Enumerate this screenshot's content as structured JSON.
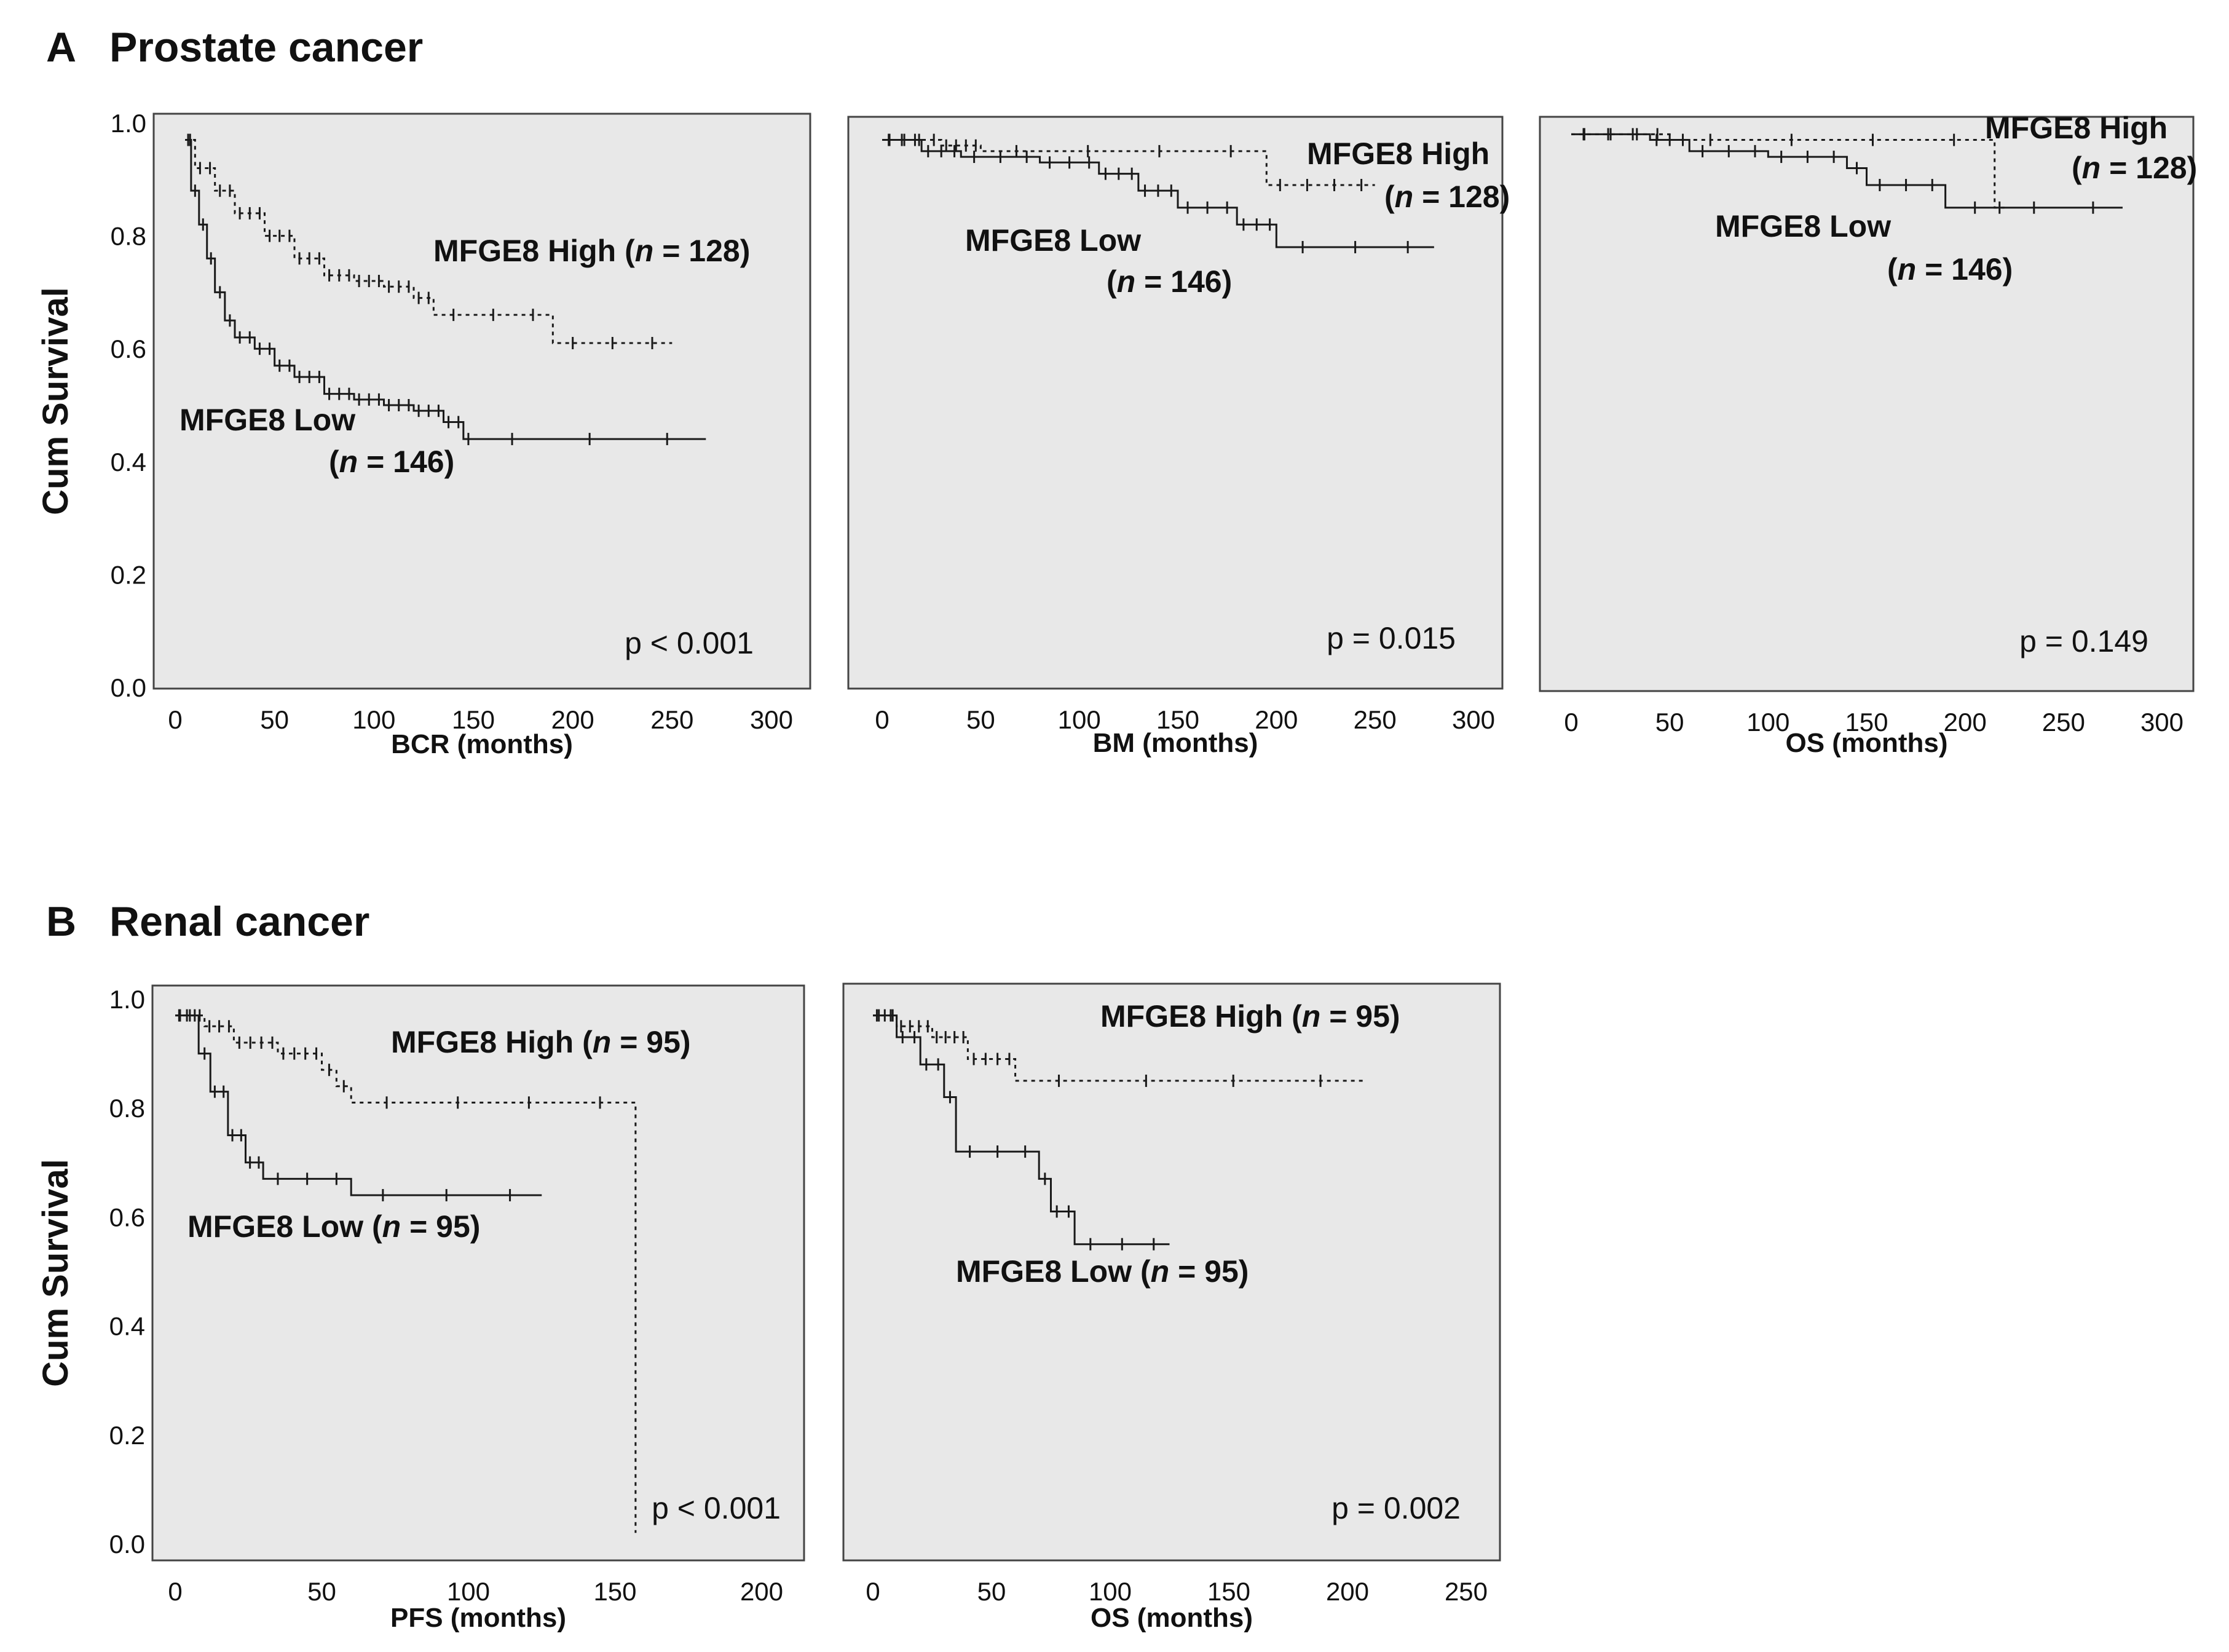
{
  "figure": {
    "section_a": {
      "letter": "A",
      "title": "Prostate cancer"
    },
    "section_b": {
      "letter": "B",
      "title": "Renal cancer"
    }
  },
  "style": {
    "panel_background": "#e8e8e8",
    "line_color": "#1a1a1a"
  },
  "chart_data": [
    {
      "type": "line",
      "xlabel": "BCR (months)",
      "ylabel": "Cum Survival",
      "xlim": [
        0,
        300
      ],
      "ylim": [
        0,
        1.0
      ],
      "xticks": [
        0,
        50,
        100,
        150,
        200,
        250,
        300
      ],
      "yticks": [
        0.0,
        0.2,
        0.4,
        0.6,
        0.8,
        1.0
      ],
      "pvalue": "p < 0.001",
      "label_high": "MFGE8 High (n = 128)",
      "label_low_1": "MFGE8 Low",
      "label_low_2": "(n = 146)",
      "series": [
        {
          "name": "MFGE8 High (n = 128)",
          "dashed": true,
          "x": [
            5,
            10,
            20,
            30,
            45,
            60,
            75,
            90,
            105,
            120,
            130,
            190,
            250
          ],
          "y": [
            0.97,
            0.92,
            0.88,
            0.84,
            0.8,
            0.76,
            0.73,
            0.72,
            0.71,
            0.69,
            0.66,
            0.61,
            0.61
          ]
        },
        {
          "name": "MFGE8 Low (n = 146)",
          "dashed": false,
          "x": [
            5,
            8,
            12,
            16,
            20,
            25,
            30,
            40,
            50,
            60,
            75,
            90,
            105,
            120,
            135,
            145,
            150,
            267
          ],
          "y": [
            0.97,
            0.88,
            0.82,
            0.76,
            0.7,
            0.65,
            0.62,
            0.6,
            0.57,
            0.55,
            0.52,
            0.51,
            0.5,
            0.49,
            0.47,
            0.44,
            0.44,
            0.44
          ]
        }
      ]
    },
    {
      "type": "line",
      "xlabel": "BM (months)",
      "xlim": [
        0,
        300
      ],
      "ylim": [
        0,
        1.0
      ],
      "xticks": [
        0,
        50,
        100,
        150,
        200,
        250,
        300
      ],
      "pvalue": "p = 0.015",
      "label_high_1": "MFGE8 High",
      "label_high_2": "(n = 128)",
      "label_low_1": "MFGE8 Low",
      "label_low_2": "(n = 146)",
      "series": [
        {
          "name": "MFGE8 High (n = 128)",
          "dashed": true,
          "x": [
            0,
            30,
            50,
            195,
            250
          ],
          "y": [
            0.97,
            0.96,
            0.95,
            0.89,
            0.89
          ]
        },
        {
          "name": "MFGE8 Low (n = 146)",
          "dashed": false,
          "x": [
            0,
            20,
            40,
            80,
            110,
            130,
            150,
            180,
            200,
            280
          ],
          "y": [
            0.97,
            0.95,
            0.94,
            0.93,
            0.91,
            0.88,
            0.85,
            0.82,
            0.78,
            0.78
          ]
        }
      ]
    },
    {
      "type": "line",
      "xlabel": "OS (months)",
      "xlim": [
        0,
        300
      ],
      "ylim": [
        0,
        1.0
      ],
      "xticks": [
        0,
        50,
        100,
        150,
        200,
        250,
        300
      ],
      "pvalue": "p = 0.149",
      "label_high_1": "MFGE8 High",
      "label_high_2": "(n = 128)",
      "label_low_1": "MFGE8 Low",
      "label_low_2": "(n = 146)",
      "series": [
        {
          "name": "MFGE8 High (n = 128)",
          "dashed": true,
          "x": [
            0,
            50,
            215,
            220
          ],
          "y": [
            0.98,
            0.97,
            0.85,
            0.85
          ]
        },
        {
          "name": "MFGE8 Low (n = 146)",
          "dashed": false,
          "x": [
            0,
            40,
            60,
            100,
            140,
            150,
            190,
            280
          ],
          "y": [
            0.98,
            0.97,
            0.95,
            0.94,
            0.92,
            0.89,
            0.85,
            0.85
          ]
        }
      ]
    },
    {
      "type": "line",
      "xlabel": "PFS (months)",
      "ylabel": "Cum Survival",
      "xlim": [
        0,
        200
      ],
      "ylim": [
        0,
        1.0
      ],
      "xticks": [
        0,
        50,
        100,
        150,
        200
      ],
      "yticks": [
        0.0,
        0.2,
        0.4,
        0.6,
        0.8,
        1.0
      ],
      "pvalue": "p < 0.001",
      "label_high": "MFGE8 High (n = 95)",
      "label_low": "MFGE8 Low (n = 95)",
      "series": [
        {
          "name": "MFGE8 High (n = 95)",
          "dashed": true,
          "x": [
            0,
            10,
            20,
            35,
            50,
            55,
            60,
            157,
            157
          ],
          "y": [
            0.97,
            0.95,
            0.92,
            0.9,
            0.87,
            0.84,
            0.81,
            0.81,
            0.02
          ]
        },
        {
          "name": "MFGE8 Low (n = 95)",
          "dashed": false,
          "x": [
            0,
            8,
            12,
            18,
            24,
            30,
            60,
            125
          ],
          "y": [
            0.97,
            0.9,
            0.83,
            0.75,
            0.7,
            0.67,
            0.64,
            0.64
          ]
        }
      ]
    },
    {
      "type": "line",
      "xlabel": "OS (months)",
      "xlim": [
        0,
        250
      ],
      "ylim": [
        0,
        1.0
      ],
      "xticks": [
        0,
        50,
        100,
        150,
        200,
        250
      ],
      "pvalue": "p = 0.002",
      "label_high": "MFGE8 High (n = 95)",
      "label_low": "MFGE8 Low (n = 95)",
      "series": [
        {
          "name": "MFGE8 High (n = 95)",
          "dashed": true,
          "x": [
            0,
            10,
            25,
            40,
            60,
            207
          ],
          "y": [
            0.97,
            0.95,
            0.93,
            0.89,
            0.85,
            0.85
          ]
        },
        {
          "name": "MFGE8 Low (n = 95)",
          "dashed": false,
          "x": [
            0,
            10,
            20,
            30,
            35,
            70,
            75,
            85,
            125
          ],
          "y": [
            0.97,
            0.93,
            0.88,
            0.82,
            0.72,
            0.67,
            0.61,
            0.55,
            0.55
          ]
        }
      ]
    }
  ]
}
